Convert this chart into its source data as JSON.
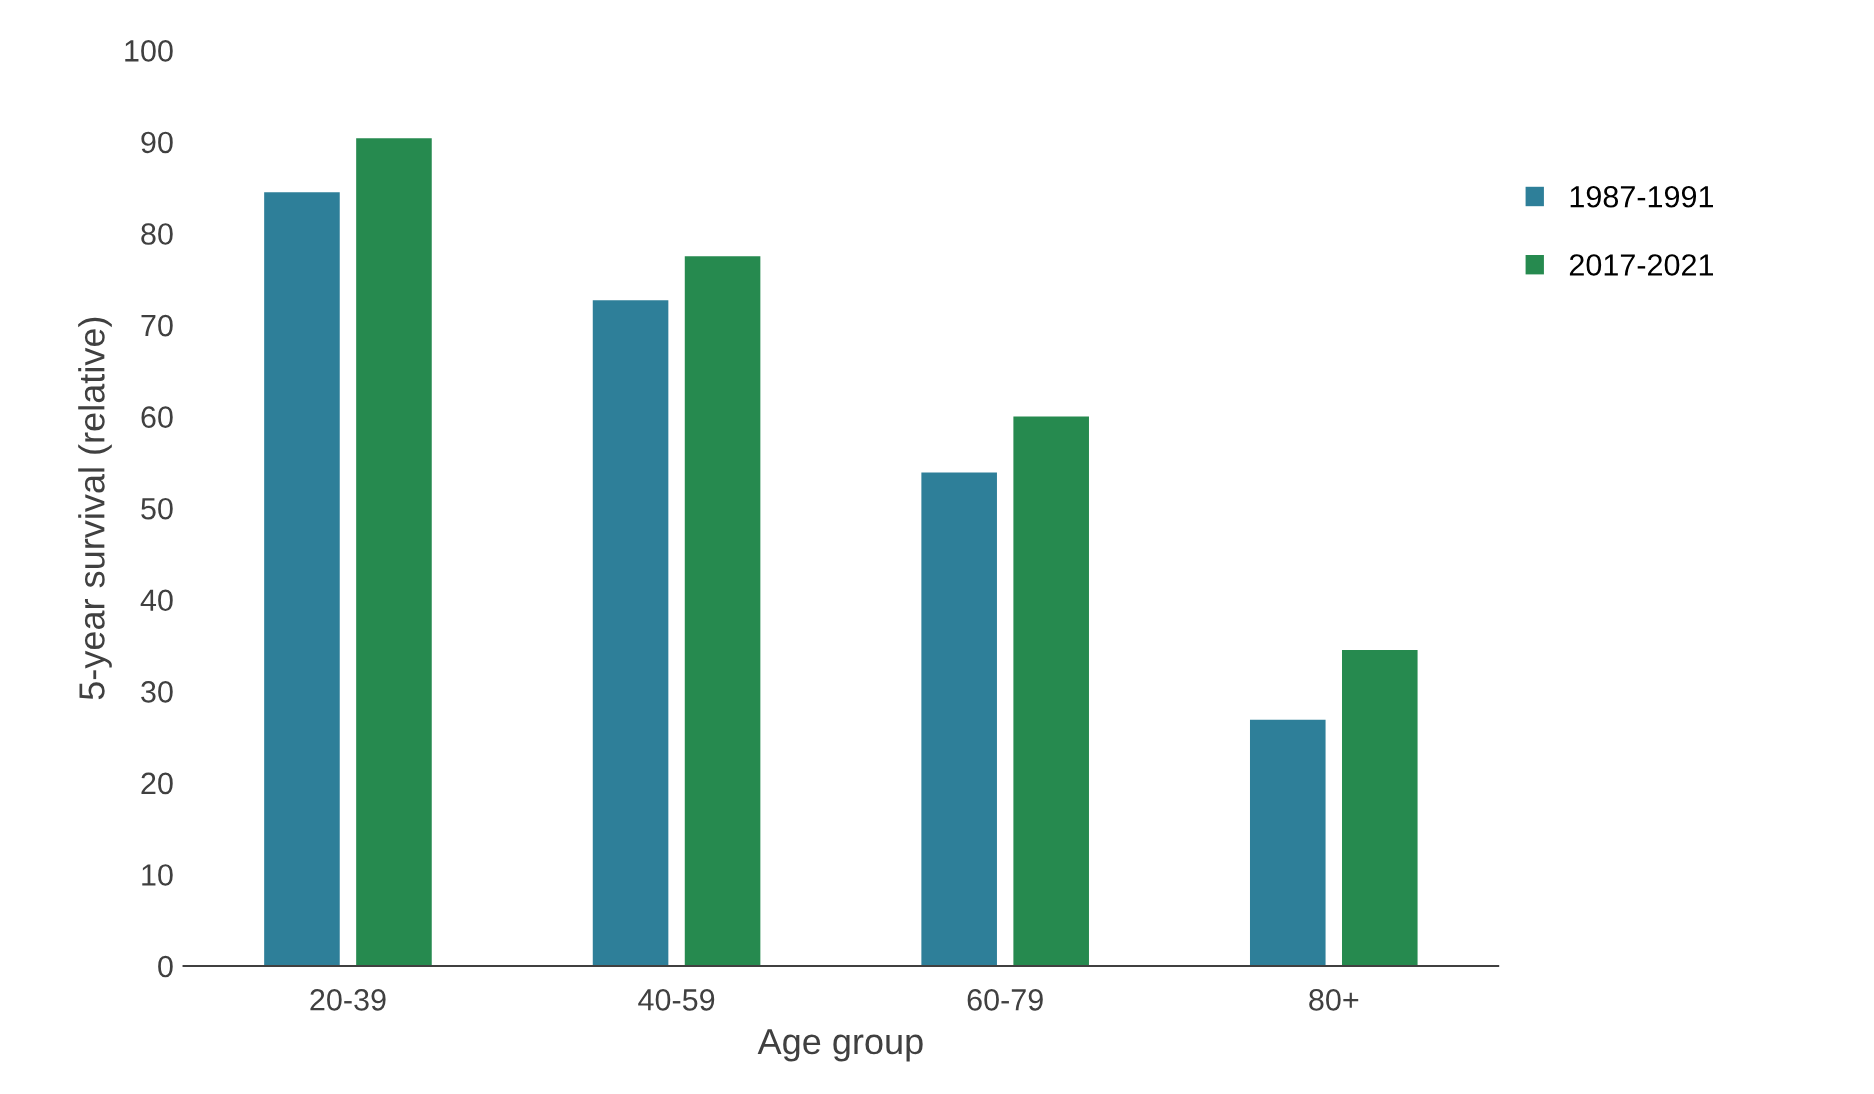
{
  "chart_data": {
    "type": "bar",
    "xlabel": "Age group",
    "ylabel": "5-year survival (relative)",
    "categories": [
      "20-39",
      "40-59",
      "60-79",
      "80+"
    ],
    "series": [
      {
        "name": "1987-1991",
        "color": "#2e7f99",
        "values": [
          84.5,
          72.7,
          53.9,
          26.9
        ]
      },
      {
        "name": "2017-2021",
        "color": "#268a4f",
        "values": [
          90.4,
          77.5,
          60.0,
          34.5
        ]
      }
    ],
    "ylim": [
      0,
      100
    ],
    "yticks": [
      0,
      10,
      20,
      30,
      40,
      50,
      60,
      70,
      80,
      90,
      100
    ],
    "grid": false,
    "legend": "right"
  }
}
